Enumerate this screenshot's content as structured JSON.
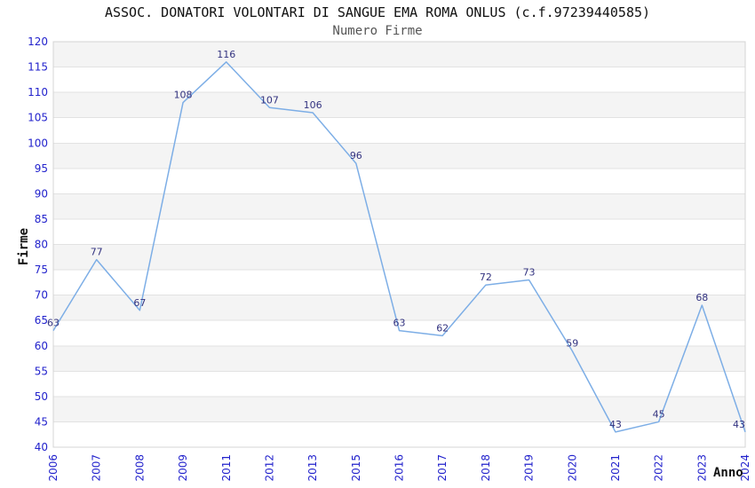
{
  "chart_data": {
    "type": "line",
    "title": "ASSOC. DONATORI VOLONTARI DI SANGUE EMA ROMA ONLUS (c.f.97239440585)",
    "subtitle": "Numero Firme",
    "xlabel": "Anno",
    "ylabel": "Firme",
    "categories": [
      "2006",
      "2007",
      "2008",
      "2009",
      "2011",
      "2012",
      "2013",
      "2015",
      "2016",
      "2017",
      "2018",
      "2019",
      "2020",
      "2021",
      "2022",
      "2023",
      "2024"
    ],
    "values": [
      63,
      77,
      67,
      108,
      116,
      107,
      106,
      96,
      63,
      62,
      72,
      73,
      59,
      43,
      45,
      68,
      43
    ],
    "series": [
      {
        "name": "Numero Firme",
        "values": [
          63,
          77,
          67,
          108,
          116,
          107,
          106,
          96,
          63,
          62,
          72,
          73,
          59,
          43,
          45,
          68,
          43
        ]
      }
    ],
    "ylim": [
      40,
      120
    ],
    "ytick_step": 5,
    "legend_position": "none",
    "grid": "horizontal gridlines with alternating shaded bands every 5 units",
    "x_tick_rotation": -90,
    "data_labels_shown": true,
    "colors": {
      "line": "#7daee6",
      "tick_label": "#2222cc",
      "data_label": "#333380",
      "band_fill": "#f4f4f4",
      "gridline": "#e2e2e2",
      "plot_border": "#d4d4d4",
      "title": "#111111",
      "subtitle": "#555555",
      "axis_title": "#111111",
      "background": "#ffffff"
    }
  }
}
